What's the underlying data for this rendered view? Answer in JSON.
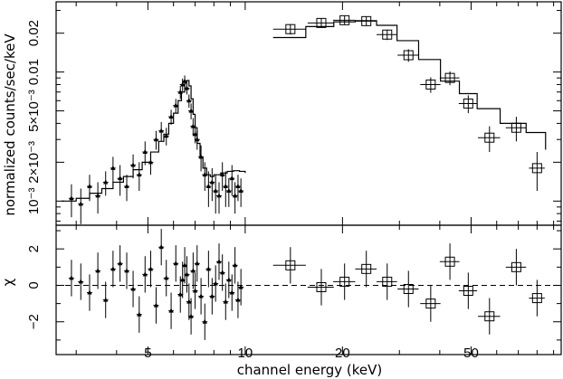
{
  "chart_data": [
    {
      "type": "scatter",
      "panel": "spectrum",
      "ylabel": "normalized counts/sec/keV",
      "yscale": "log",
      "xscale": "log",
      "xlim": [
        2.6,
        95
      ],
      "ylim": [
        0.00065,
        0.035
      ],
      "yticklabels": [
        {
          "value": 0.001,
          "text": "10⁻³"
        },
        {
          "value": 0.002,
          "text": "2×10⁻³"
        },
        {
          "value": 0.005,
          "text": "5×10⁻³"
        },
        {
          "value": 0.01,
          "text": "0.01"
        },
        {
          "value": 0.02,
          "text": "0.02"
        }
      ],
      "series": [
        {
          "marker": "triangle",
          "x": [
            2.9,
            3.1,
            3.3,
            3.5,
            3.7,
            3.9,
            4.1,
            4.3,
            4.5,
            4.7,
            4.9,
            5.1,
            5.3,
            5.5,
            5.7,
            5.9,
            6.1,
            6.3,
            6.4,
            6.5,
            6.6,
            6.7,
            6.8,
            6.9,
            7.0,
            7.1,
            7.3,
            7.5,
            7.7,
            7.9,
            8.1,
            8.3,
            8.5,
            8.7,
            8.9,
            9.1,
            9.3,
            9.5,
            9.7
          ],
          "y": [
            0.00105,
            0.00095,
            0.0013,
            0.0011,
            0.0014,
            0.0018,
            0.0015,
            0.0013,
            0.0019,
            0.0016,
            0.0024,
            0.002,
            0.003,
            0.0035,
            0.0032,
            0.0045,
            0.0055,
            0.007,
            0.008,
            0.0085,
            0.0075,
            0.006,
            0.005,
            0.0038,
            0.0033,
            0.003,
            0.0022,
            0.0016,
            0.0013,
            0.0014,
            0.0012,
            0.0011,
            0.0016,
            0.0013,
            0.0012,
            0.0015,
            0.0011,
            0.0013,
            0.0012
          ],
          "yerr": [
            0.0003,
            0.0003,
            0.0003,
            0.0003,
            0.0003,
            0.0004,
            0.0004,
            0.0003,
            0.0004,
            0.0004,
            0.0005,
            0.0004,
            0.0005,
            0.0006,
            0.0005,
            0.0006,
            0.0007,
            0.0008,
            0.0009,
            0.0009,
            0.0008,
            0.0007,
            0.0007,
            0.0006,
            0.0005,
            0.0005,
            0.0005,
            0.0004,
            0.0004,
            0.0004,
            0.0004,
            0.0003,
            0.0004,
            0.0004,
            0.0003,
            0.0004,
            0.0003,
            0.0003,
            0.0003
          ],
          "chi": [
            0.4,
            0.2,
            -0.4,
            0.8,
            -0.8,
            0.9,
            1.2,
            0.8,
            -0.2,
            -1.6,
            0.6,
            0.9,
            -1.1,
            2.1,
            0.4,
            -1.4,
            1.2,
            -0.5,
            0.3,
            1.1,
            0.6,
            -0.9,
            -1.7,
            0.8,
            -0.3,
            1.2,
            -0.6,
            -2.0,
            0.9,
            -0.6,
            0.1,
            1.3,
            0.7,
            -0.9,
            0.3,
            -0.4,
            1.1,
            -0.8,
            -0.1
          ]
        },
        {
          "marker": "square",
          "x": [
            13.8,
            17.2,
            20.3,
            23.7,
            27.5,
            32.0,
            37.5,
            43.0,
            49.0,
            57.0,
            69.0,
            80.0
          ],
          "y": [
            0.0215,
            0.024,
            0.0252,
            0.0248,
            0.0195,
            0.0135,
            0.008,
            0.009,
            0.0057,
            0.0031,
            0.0037,
            0.0018
          ],
          "xerr": [
            1.6,
            1.6,
            1.6,
            1.8,
            2.0,
            2.4,
            2.7,
            3.0,
            3.2,
            4.5,
            5.0,
            4.5
          ],
          "yerr": [
            0.002,
            0.002,
            0.002,
            0.002,
            0.0018,
            0.0015,
            0.0011,
            0.0011,
            0.0009,
            0.0007,
            0.0008,
            0.0006
          ],
          "chi": [
            1.1,
            -0.1,
            0.2,
            0.9,
            0.2,
            -0.2,
            -1.0,
            1.3,
            -0.3,
            -1.7,
            1.0,
            -0.7
          ]
        }
      ],
      "model_soft": {
        "x": [
          2.7,
          3.0,
          3.3,
          3.6,
          3.9,
          4.2,
          4.5,
          4.8,
          5.1,
          5.4,
          5.6,
          5.8,
          6.0,
          6.2,
          6.35,
          6.5,
          6.6,
          6.7,
          6.8,
          6.9,
          7.0,
          7.1,
          7.25,
          7.4,
          7.6,
          7.8,
          8.0,
          8.4,
          8.8,
          9.2,
          9.6,
          10.0
        ],
        "y": [
          0.001,
          0.00105,
          0.00115,
          0.00125,
          0.0014,
          0.00155,
          0.00175,
          0.002,
          0.0024,
          0.0029,
          0.0033,
          0.004,
          0.0048,
          0.006,
          0.007,
          0.0082,
          0.0086,
          0.0078,
          0.0062,
          0.0047,
          0.0037,
          0.0028,
          0.0022,
          0.0018,
          0.0016,
          0.00155,
          0.0016,
          0.00165,
          0.0017,
          0.00172,
          0.0017,
          0.00165
        ]
      },
      "model_hard": {
        "x": [
          12.2,
          15.4,
          18.8,
          21.9,
          25.5,
          29.5,
          34.4,
          40.2,
          46.0,
          52.2,
          61.5,
          74.0,
          85.0
        ],
        "y": [
          0.0185,
          0.0225,
          0.0245,
          0.025,
          0.023,
          0.0175,
          0.0125,
          0.0085,
          0.0068,
          0.0052,
          0.004,
          0.0034,
          0.0025
        ]
      }
    },
    {
      "type": "scatter",
      "panel": "residuals",
      "ylabel": "χ",
      "xlabel": "channel energy (keV)",
      "ylim": [
        -3.8,
        3.3
      ],
      "yticks": [
        -2,
        0,
        2
      ],
      "ytick_labels": [
        "−2",
        "0",
        "2"
      ],
      "xticks": [
        5,
        10,
        20,
        50
      ],
      "xtick_labels": [
        "5",
        "10",
        "20",
        "50"
      ],
      "zero_line": "dashed"
    }
  ]
}
